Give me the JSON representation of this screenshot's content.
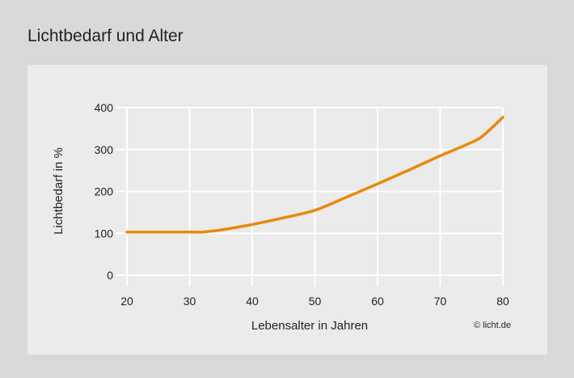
{
  "title": "Lichtbedarf und Alter",
  "credit": "© licht.de",
  "chart_data": {
    "type": "line",
    "title": "Lichtbedarf und Alter",
    "xlabel": "Lebensalter in Jahren",
    "ylabel": "Lichtbedarf in %",
    "xlim": [
      20,
      80
    ],
    "ylim": [
      0,
      400
    ],
    "xticks": [
      20,
      30,
      40,
      50,
      60,
      70,
      80
    ],
    "yticks": [
      0,
      100,
      200,
      300,
      400
    ],
    "grid": true,
    "color": "#e8890c",
    "series": [
      {
        "x": [
          20,
          25,
          30,
          32,
          35,
          40,
          45,
          50,
          55,
          60,
          65,
          70,
          75,
          77,
          80
        ],
        "y": [
          103,
          103,
          103,
          103,
          108,
          121,
          137,
          155,
          186,
          218,
          251,
          285,
          317,
          335,
          377
        ]
      }
    ]
  }
}
